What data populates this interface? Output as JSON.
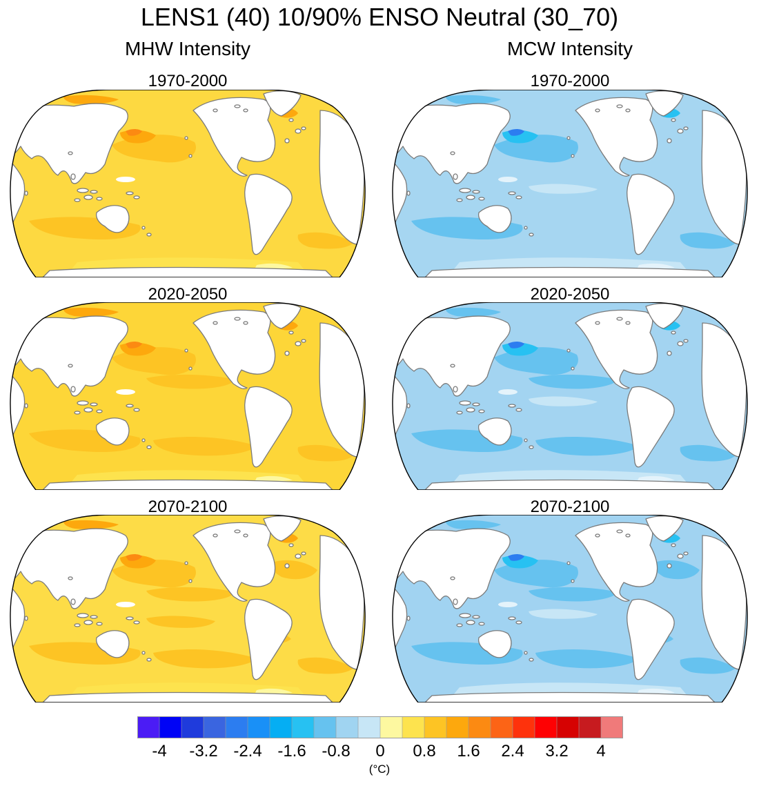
{
  "title": "LENS1 (40) 10/90% ENSO Neutral (30_70)",
  "columns": [
    {
      "heading": "MHW Intensity",
      "scheme": "warm"
    },
    {
      "heading": "MCW Intensity",
      "scheme": "cool"
    }
  ],
  "periods": [
    "1970-2000",
    "2020-2050",
    "2070-2100"
  ],
  "panels": [
    {
      "id": "mhw-1970-2000",
      "period": "1970-2000",
      "scheme": "warm",
      "base": "#fdd941",
      "enhance": 0
    },
    {
      "id": "mcw-1970-2000",
      "period": "1970-2000",
      "scheme": "cool",
      "base": "#a6d6f1",
      "enhance": 0
    },
    {
      "id": "mhw-2020-2050",
      "period": "2020-2050",
      "scheme": "warm",
      "base": "#fdd638",
      "enhance": 1
    },
    {
      "id": "mcw-2020-2050",
      "period": "2020-2050",
      "scheme": "cool",
      "base": "#a3d4f1",
      "enhance": 1
    },
    {
      "id": "mhw-2070-2100",
      "period": "2070-2100",
      "scheme": "warm",
      "base": "#fddc47",
      "enhance": 2
    },
    {
      "id": "mcw-2070-2100",
      "period": "2070-2100",
      "scheme": "cool",
      "base": "#a1d3f1",
      "enhance": 2
    }
  ],
  "colorbar": {
    "colors": [
      "#4b1cf5",
      "#0003f6",
      "#1f3bdc",
      "#3a65e0",
      "#2c7df0",
      "#1990f7",
      "#05aef3",
      "#27c1f2",
      "#66c2ef",
      "#a0d4f1",
      "#c7e6f6",
      "#fdf8a0",
      "#fde34e",
      "#fdc424",
      "#fda80d",
      "#fc8a12",
      "#fc6416",
      "#fe320c",
      "#fe0103",
      "#d60202",
      "#c71b1f",
      "#f07a7a"
    ],
    "ticks": [
      "-4",
      "-3.2",
      "-2.4",
      "-1.6",
      "-0.8",
      "0",
      "0.8",
      "1.6",
      "2.4",
      "3.2",
      "4"
    ],
    "units": "(°C)"
  }
}
